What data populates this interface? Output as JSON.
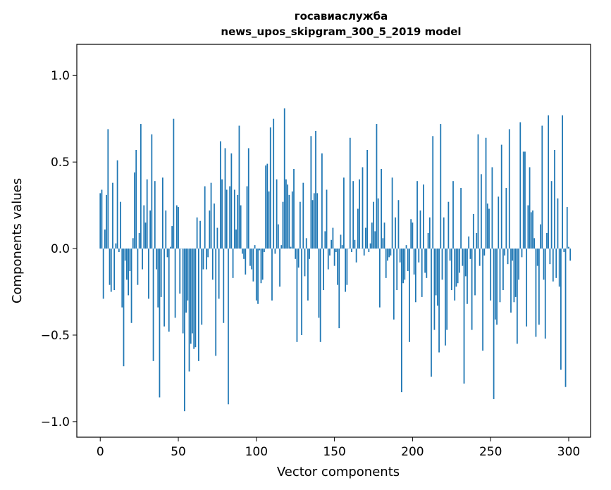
{
  "chart_data": {
    "type": "bar",
    "title": "госавиаслужба",
    "subtitle": "news_upos_skipgram_300_5_2019 model",
    "xlabel": "Vector components",
    "ylabel": "Components values",
    "xlim": [
      -15,
      314
    ],
    "ylim": [
      -1.09,
      1.18
    ],
    "xticks": [
      0,
      50,
      100,
      150,
      200,
      250,
      300
    ],
    "xtick_labels": [
      "0",
      "50",
      "100",
      "150",
      "200",
      "250",
      "300"
    ],
    "yticks": [
      -1.0,
      -0.5,
      0.0,
      0.5,
      1.0
    ],
    "ytick_labels": [
      "−1.0",
      "−0.5",
      "0.0",
      "0.5",
      "1.0"
    ],
    "grid": false,
    "bar_color": "#1f77b4",
    "values": [
      0.32,
      0.34,
      -0.29,
      0.11,
      0.31,
      0.69,
      -0.21,
      -0.25,
      0.38,
      -0.24,
      0.03,
      0.51,
      -0.02,
      0.27,
      -0.34,
      -0.68,
      -0.07,
      -0.18,
      -0.27,
      -0.13,
      -0.43,
      0.06,
      0.44,
      0.57,
      -0.21,
      0.09,
      0.72,
      -0.12,
      0.25,
      0.15,
      0.4,
      -0.29,
      0.22,
      0.66,
      -0.65,
      0.39,
      -0.12,
      -0.34,
      -0.86,
      -0.28,
      0.41,
      -0.45,
      0.22,
      -0.05,
      -0.48,
      0.01,
      0.13,
      0.75,
      -0.4,
      0.25,
      0.24,
      -0.26,
      0.0,
      -0.49,
      -0.94,
      -0.37,
      -0.3,
      -0.71,
      -0.55,
      -0.49,
      -0.58,
      -0.57,
      0.18,
      -0.65,
      0.16,
      -0.44,
      -0.12,
      0.36,
      -0.12,
      -0.05,
      0.22,
      0.38,
      -0.18,
      0.26,
      -0.62,
      0.12,
      -0.29,
      0.62,
      0.4,
      -0.43,
      0.58,
      0.34,
      -0.9,
      0.36,
      0.55,
      -0.17,
      0.34,
      0.11,
      0.31,
      0.71,
      0.25,
      -0.03,
      -0.06,
      -0.15,
      0.36,
      0.58,
      -0.1,
      -0.12,
      -0.19,
      0.02,
      -0.3,
      -0.32,
      -0.01,
      -0.2,
      -0.18,
      -0.02,
      0.48,
      0.49,
      0.33,
      0.7,
      -0.3,
      0.75,
      -0.03,
      0.4,
      0.14,
      -0.22,
      0.02,
      0.27,
      0.81,
      0.4,
      0.37,
      0.31,
      0.01,
      0.33,
      0.46,
      -0.06,
      -0.54,
      -0.11,
      0.27,
      -0.5,
      0.38,
      -0.16,
      0.06,
      -0.3,
      -0.06,
      0.65,
      0.28,
      0.32,
      0.68,
      0.32,
      -0.4,
      -0.54,
      0.55,
      -0.24,
      0.1,
      0.34,
      -0.12,
      -0.04,
      0.05,
      0.12,
      -0.1,
      -0.02,
      -0.21,
      -0.46,
      0.08,
      0.02,
      0.41,
      -0.25,
      -0.21,
      0.0,
      0.64,
      -0.02,
      0.39,
      0.05,
      -0.08,
      0.23,
      0.4,
      0.0,
      0.47,
      -0.04,
      0.12,
      0.57,
      -0.02,
      0.03,
      0.15,
      0.27,
      0.1,
      0.72,
      0.29,
      -0.34,
      0.46,
      0.06,
      0.15,
      -0.17,
      -0.07,
      -0.05,
      -0.04,
      0.41,
      -0.41,
      0.18,
      -0.24,
      0.28,
      -0.08,
      -0.83,
      -0.2,
      -0.18,
      0.02,
      -0.13,
      -0.54,
      0.17,
      0.15,
      -0.15,
      -0.31,
      0.39,
      -0.08,
      0.22,
      -0.28,
      0.37,
      -0.14,
      -0.17,
      0.09,
      0.18,
      -0.74,
      0.65,
      -0.47,
      -0.27,
      -0.33,
      -0.6,
      0.72,
      -0.18,
      0.18,
      -0.56,
      -0.47,
      0.27,
      -0.07,
      -0.24,
      0.39,
      -0.3,
      -0.22,
      -0.2,
      -0.14,
      0.35,
      -0.1,
      -0.78,
      -0.16,
      -0.32,
      0.07,
      -0.06,
      -0.47,
      0.2,
      -0.27,
      0.09,
      0.66,
      -0.1,
      0.43,
      -0.59,
      -0.04,
      0.64,
      0.26,
      0.23,
      -0.3,
      0.47,
      -0.87,
      -0.41,
      -0.44,
      0.3,
      -0.31,
      0.6,
      -0.24,
      -0.04,
      0.35,
      -0.09,
      0.69,
      -0.37,
      -0.07,
      -0.31,
      -0.28,
      -0.55,
      -0.18,
      0.73,
      -0.05,
      0.56,
      0.56,
      -0.45,
      0.25,
      0.47,
      0.21,
      0.22,
      0.06,
      -0.51,
      -0.1,
      -0.44,
      0.14,
      0.71,
      -0.18,
      -0.52,
      0.09,
      0.77,
      -0.09,
      0.39,
      -0.19,
      0.57,
      -0.17,
      0.29,
      -0.22,
      -0.7,
      0.77,
      -0.02,
      -0.8,
      0.24,
      0.01,
      -0.07
    ]
  }
}
